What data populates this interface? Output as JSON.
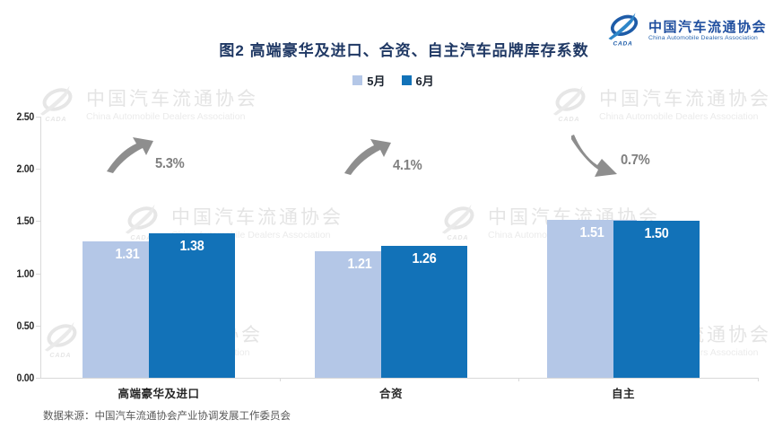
{
  "header": {
    "title": "图2  高端豪华及进口、合资、自主汽车品牌库存系数",
    "logo": {
      "chinese": "中国汽车流通协会",
      "english": "China Automobile Dealers Association",
      "acronym": "CADA"
    }
  },
  "legend": {
    "items": [
      {
        "label": "5月",
        "color": "#B4C7E7"
      },
      {
        "label": "6月",
        "color": "#1272B8"
      }
    ]
  },
  "chart_data": {
    "type": "bar",
    "title": "图2  高端豪华及进口、合资、自主汽车品牌库存系数",
    "categories": [
      "高端豪华及进口",
      "合资",
      "自主"
    ],
    "series": [
      {
        "name": "5月",
        "color": "#B4C7E7",
        "values": [
          1.31,
          1.21,
          1.51
        ]
      },
      {
        "name": "6月",
        "color": "#1272B8",
        "values": [
          1.38,
          1.26,
          1.5
        ]
      }
    ],
    "annotations": [
      {
        "text": "5.3%",
        "direction": "up"
      },
      {
        "text": "4.1%",
        "direction": "up"
      },
      {
        "text": "0.7%",
        "direction": "down"
      }
    ],
    "y_axis": {
      "min": 0.0,
      "max": 2.5,
      "step": 0.5,
      "tick_labels": [
        "0.00",
        "0.50",
        "1.00",
        "1.50",
        "2.00",
        "2.50"
      ]
    },
    "grid": false,
    "legend_position": "top",
    "value_labels": "inside-top",
    "colors": {
      "axis": "#D9D9D9",
      "annotation_arrow": "#8E8E8E",
      "annotation_text": "#7F7F7F"
    }
  },
  "watermark": {
    "chinese": "中国汽车流通协会",
    "english": "China Automobile Dealers Association",
    "acronym": "CADA"
  },
  "footer": {
    "source": "数据来源：中国汽车流通协会产业协调发展工作委员会"
  }
}
